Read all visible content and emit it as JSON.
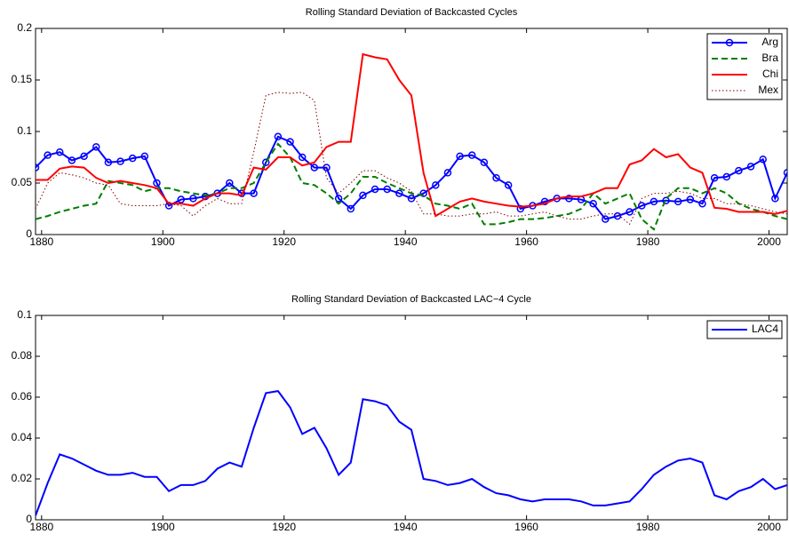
{
  "chart_data": [
    {
      "type": "line",
      "title": "Rolling Standard Deviation of Backcasted Cycles",
      "x": [
        1879,
        1881,
        1883,
        1885,
        1887,
        1889,
        1891,
        1893,
        1895,
        1897,
        1899,
        1901,
        1903,
        1905,
        1907,
        1909,
        1911,
        1913,
        1915,
        1917,
        1919,
        1921,
        1923,
        1925,
        1927,
        1929,
        1931,
        1933,
        1935,
        1937,
        1939,
        1941,
        1943,
        1945,
        1947,
        1949,
        1951,
        1953,
        1955,
        1957,
        1959,
        1961,
        1963,
        1965,
        1967,
        1969,
        1971,
        1973,
        1975,
        1977,
        1979,
        1981,
        1983,
        1985,
        1987,
        1989,
        1991,
        1993,
        1995,
        1997,
        1999,
        2001,
        2003
      ],
      "series": [
        {
          "name": "Arg",
          "color": "#0000ff",
          "dash": "solid",
          "marker": "circle",
          "values": [
            0.065,
            0.077,
            0.08,
            0.072,
            0.076,
            0.085,
            0.07,
            0.071,
            0.074,
            0.076,
            0.05,
            0.028,
            0.034,
            0.035,
            0.037,
            0.04,
            0.05,
            0.04,
            0.04,
            0.07,
            0.095,
            0.09,
            0.075,
            0.065,
            0.065,
            0.035,
            0.025,
            0.038,
            0.044,
            0.044,
            0.04,
            0.035,
            0.04,
            0.048,
            0.06,
            0.076,
            0.077,
            0.07,
            0.055,
            0.048,
            0.025,
            0.028,
            0.032,
            0.035,
            0.035,
            0.034,
            0.03,
            0.015,
            0.018,
            0.022,
            0.028,
            0.032,
            0.033,
            0.032,
            0.034,
            0.03,
            0.055,
            0.056,
            0.062,
            0.066,
            0.073,
            0.035,
            0.06
          ]
        },
        {
          "name": "Bra",
          "color": "#007f00",
          "dash": "dashed",
          "values": [
            0.015,
            0.018,
            0.022,
            0.025,
            0.028,
            0.03,
            0.052,
            0.05,
            0.048,
            0.042,
            0.045,
            0.045,
            0.042,
            0.04,
            0.038,
            0.04,
            0.045,
            0.045,
            0.05,
            0.07,
            0.088,
            0.075,
            0.05,
            0.048,
            0.04,
            0.03,
            0.04,
            0.056,
            0.056,
            0.05,
            0.045,
            0.04,
            0.038,
            0.03,
            0.028,
            0.025,
            0.03,
            0.01,
            0.01,
            0.012,
            0.015,
            0.015,
            0.016,
            0.018,
            0.02,
            0.025,
            0.04,
            0.03,
            0.035,
            0.04,
            0.015,
            0.005,
            0.035,
            0.045,
            0.045,
            0.04,
            0.045,
            0.04,
            0.03,
            0.025,
            0.022,
            0.018,
            0.015
          ]
        },
        {
          "name": "Chi",
          "color": "#ff0000",
          "dash": "solid",
          "values": [
            0.053,
            0.053,
            0.064,
            0.066,
            0.065,
            0.055,
            0.05,
            0.052,
            0.05,
            0.048,
            0.045,
            0.03,
            0.03,
            0.028,
            0.035,
            0.04,
            0.04,
            0.038,
            0.065,
            0.063,
            0.075,
            0.075,
            0.067,
            0.07,
            0.085,
            0.09,
            0.09,
            0.175,
            0.172,
            0.17,
            0.15,
            0.135,
            0.06,
            0.018,
            0.025,
            0.032,
            0.035,
            0.032,
            0.03,
            0.028,
            0.027,
            0.028,
            0.03,
            0.035,
            0.037,
            0.037,
            0.04,
            0.045,
            0.045,
            0.068,
            0.072,
            0.083,
            0.075,
            0.078,
            0.065,
            0.06,
            0.026,
            0.025,
            0.022,
            0.022,
            0.022,
            0.02,
            0.023
          ]
        },
        {
          "name": "Mex",
          "color": "#7f0000",
          "dash": "dotted",
          "values": [
            0.025,
            0.05,
            0.06,
            0.058,
            0.055,
            0.05,
            0.048,
            0.03,
            0.028,
            0.028,
            0.028,
            0.03,
            0.028,
            0.018,
            0.028,
            0.035,
            0.03,
            0.03,
            0.08,
            0.135,
            0.138,
            0.137,
            0.138,
            0.13,
            0.055,
            0.04,
            0.05,
            0.062,
            0.062,
            0.055,
            0.05,
            0.042,
            0.02,
            0.02,
            0.018,
            0.018,
            0.02,
            0.02,
            0.022,
            0.018,
            0.018,
            0.02,
            0.022,
            0.018,
            0.015,
            0.015,
            0.018,
            0.02,
            0.02,
            0.01,
            0.035,
            0.04,
            0.04,
            0.042,
            0.04,
            0.035,
            0.035,
            0.03,
            0.03,
            0.028,
            0.025,
            0.022,
            0.02
          ]
        }
      ],
      "xlim": [
        1879,
        2003
      ],
      "xticks": [
        1880,
        1900,
        1920,
        1940,
        1960,
        1980,
        2000
      ],
      "ylim": [
        0,
        0.2
      ],
      "yticks": [
        0,
        0.05,
        0.1,
        0.15,
        0.2
      ],
      "grid": false,
      "legend": "top-right"
    },
    {
      "type": "line",
      "title": "Rolling Standard Deviation of Backcasted LAC−4 Cycle",
      "x": [
        1879,
        1881,
        1883,
        1885,
        1887,
        1889,
        1891,
        1893,
        1895,
        1897,
        1899,
        1901,
        1903,
        1905,
        1907,
        1909,
        1911,
        1913,
        1915,
        1917,
        1919,
        1921,
        1923,
        1925,
        1927,
        1929,
        1931,
        1933,
        1935,
        1937,
        1939,
        1941,
        1943,
        1945,
        1947,
        1949,
        1951,
        1953,
        1955,
        1957,
        1959,
        1961,
        1963,
        1965,
        1967,
        1969,
        1971,
        1973,
        1975,
        1977,
        1979,
        1981,
        1983,
        1985,
        1987,
        1989,
        1991,
        1993,
        1995,
        1997,
        1999,
        2001,
        2003
      ],
      "series": [
        {
          "name": "LAC4",
          "color": "#0000ff",
          "dash": "solid",
          "values": [
            0.002,
            0.018,
            0.032,
            0.03,
            0.027,
            0.024,
            0.022,
            0.022,
            0.023,
            0.021,
            0.021,
            0.014,
            0.017,
            0.017,
            0.019,
            0.025,
            0.028,
            0.026,
            0.045,
            0.062,
            0.063,
            0.055,
            0.042,
            0.045,
            0.035,
            0.022,
            0.028,
            0.059,
            0.058,
            0.056,
            0.048,
            0.044,
            0.02,
            0.019,
            0.017,
            0.018,
            0.02,
            0.016,
            0.013,
            0.012,
            0.01,
            0.009,
            0.01,
            0.01,
            0.01,
            0.009,
            0.007,
            0.007,
            0.008,
            0.009,
            0.015,
            0.022,
            0.026,
            0.029,
            0.03,
            0.028,
            0.012,
            0.01,
            0.014,
            0.016,
            0.02,
            0.015,
            0.017
          ]
        }
      ],
      "xlim": [
        1879,
        2003
      ],
      "xticks": [
        1880,
        1900,
        1920,
        1940,
        1960,
        1980,
        2000
      ],
      "ylim": [
        0,
        0.1
      ],
      "yticks": [
        0,
        0.02,
        0.04,
        0.06,
        0.08,
        0.1
      ],
      "grid": false,
      "legend": "top-right"
    }
  ]
}
